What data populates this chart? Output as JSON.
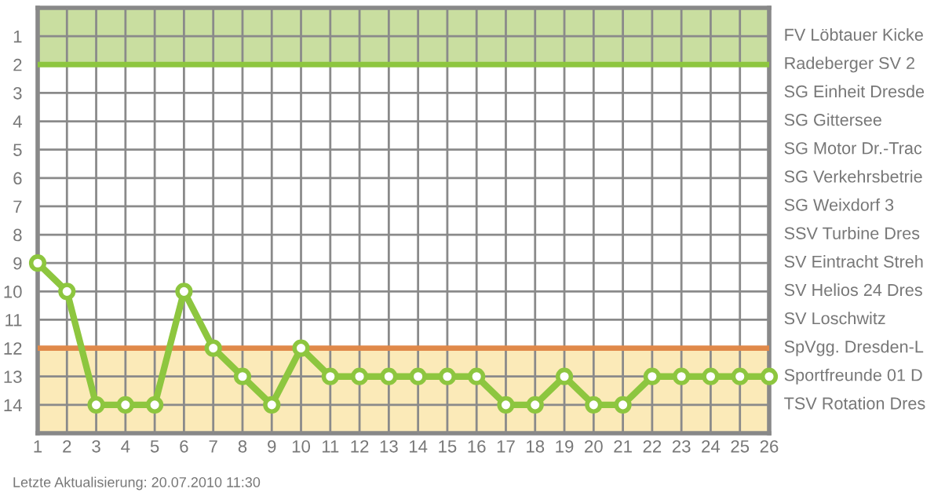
{
  "chart_data": {
    "type": "line",
    "x": [
      1,
      2,
      3,
      4,
      5,
      6,
      7,
      8,
      9,
      10,
      11,
      12,
      13,
      14,
      15,
      16,
      17,
      18,
      19,
      20,
      21,
      22,
      23,
      24,
      25,
      26
    ],
    "series": [
      {
        "color": "#8dc63f",
        "values": [
          9,
          10,
          14,
          14,
          14,
          10,
          12,
          13,
          14,
          12,
          13,
          13,
          13,
          13,
          13,
          13,
          14,
          14,
          13,
          14,
          14,
          13,
          13,
          13,
          13,
          13
        ]
      }
    ],
    "xlim": [
      1,
      26
    ],
    "xticks": [
      1,
      2,
      3,
      4,
      5,
      6,
      7,
      8,
      9,
      10,
      11,
      12,
      13,
      14,
      15,
      16,
      17,
      18,
      19,
      20,
      21,
      22,
      23,
      24,
      25,
      26
    ],
    "ylim": [
      15,
      0
    ],
    "yticks": [
      1,
      2,
      3,
      4,
      5,
      6,
      7,
      8,
      9,
      10,
      11,
      12,
      13,
      14
    ],
    "grid": true,
    "marker": "circle",
    "line_style": "solid",
    "bands": [
      {
        "axis": "y",
        "from": 0,
        "to": 2,
        "color": "#c9dea0"
      },
      {
        "axis": "y",
        "from": 12,
        "to": 15,
        "color": "#fbeab8"
      }
    ],
    "ref_lines": [
      {
        "axis": "y",
        "value": 2,
        "color": "#8dc63f"
      },
      {
        "axis": "y",
        "value": 12,
        "color": "#e0894a"
      }
    ],
    "annotations": [
      "FV Löbtauer Kicke",
      "Radeberger SV 2",
      "SG Einheit Dresde",
      "SG Gittersee",
      "SG Motor Dr.-Trac",
      "SG Verkehrsbetrie",
      "SG Weixdorf 3",
      "SSV Turbine Dres",
      "SV Eintracht Streh",
      "SV Helios 24 Dres",
      "SV Loschwitz",
      "SpVgg. Dresden-L",
      "Sportfreunde 01 D",
      "TSV Rotation Dres",
      "Letzte Aktualisierung: 20.07.2010 11:30"
    ]
  }
}
